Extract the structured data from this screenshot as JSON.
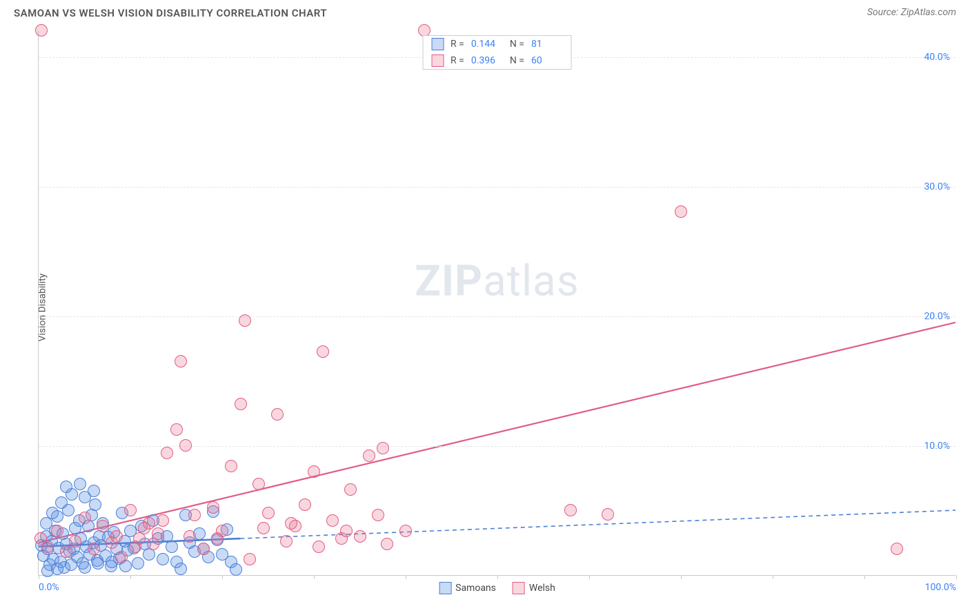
{
  "header": {
    "title": "SAMOAN VS WELSH VISION DISABILITY CORRELATION CHART",
    "source": "Source: ZipAtlas.com"
  },
  "watermark": {
    "bold": "ZIP",
    "light": "atlas"
  },
  "chart": {
    "type": "scatter",
    "y_label": "Vision Disability",
    "xlim": [
      0,
      100
    ],
    "ylim": [
      0,
      42
    ],
    "x_ticks": [
      0,
      10,
      20,
      30,
      40,
      50,
      60,
      70,
      80,
      90,
      100
    ],
    "x_tick_labels": {
      "0": "0.0%",
      "100": "100.0%"
    },
    "y_ticks": [
      10,
      20,
      30,
      40
    ],
    "y_tick_labels": [
      "10.0%",
      "20.0%",
      "30.0%",
      "40.0%"
    ],
    "grid_color": "#e5e5e5",
    "axis_color": "#c8c8c8",
    "background": "#ffffff",
    "label_color": "#555555",
    "tick_label_color": "#3b82f6",
    "marker_radius": 9,
    "series": [
      {
        "key": "samoans",
        "name": "Samoans",
        "R": "0.144",
        "N": "81",
        "fill": "rgba(96,150,230,0.35)",
        "stroke": "#4a7fd6",
        "trendline": {
          "x1": 0,
          "y1": 2.2,
          "x2": 100,
          "y2": 5.0,
          "dash": "6 5",
          "width": 1.6,
          "solid_until_x": 22
        },
        "points": [
          [
            0.3,
            2.3
          ],
          [
            0.5,
            1.5
          ],
          [
            0.8,
            3.0
          ],
          [
            1.0,
            2.0
          ],
          [
            1.2,
            0.8
          ],
          [
            1.4,
            2.6
          ],
          [
            1.6,
            1.2
          ],
          [
            1.8,
            3.4
          ],
          [
            2.0,
            4.5
          ],
          [
            2.2,
            2.1
          ],
          [
            2.4,
            1.0
          ],
          [
            2.6,
            3.2
          ],
          [
            2.8,
            0.6
          ],
          [
            3.0,
            2.4
          ],
          [
            3.2,
            5.0
          ],
          [
            3.4,
            1.8
          ],
          [
            3.6,
            6.2
          ],
          [
            3.8,
            2.0
          ],
          [
            4.0,
            3.6
          ],
          [
            4.2,
            1.4
          ],
          [
            4.4,
            4.2
          ],
          [
            4.6,
            2.8
          ],
          [
            4.8,
            0.9
          ],
          [
            5.0,
            6.0
          ],
          [
            5.2,
            2.2
          ],
          [
            5.4,
            3.8
          ],
          [
            5.6,
            1.6
          ],
          [
            5.8,
            4.6
          ],
          [
            6.0,
            2.5
          ],
          [
            6.2,
            5.4
          ],
          [
            6.4,
            1.1
          ],
          [
            6.6,
            3.0
          ],
          [
            6.8,
            2.3
          ],
          [
            7.0,
            4.0
          ],
          [
            7.3,
            1.5
          ],
          [
            7.6,
            2.9
          ],
          [
            7.9,
            0.7
          ],
          [
            8.2,
            3.3
          ],
          [
            8.5,
            2.0
          ],
          [
            8.8,
            1.3
          ],
          [
            9.1,
            4.8
          ],
          [
            9.4,
            2.6
          ],
          [
            9.7,
            1.9
          ],
          [
            10.0,
            3.4
          ],
          [
            10.4,
            2.1
          ],
          [
            10.8,
            0.9
          ],
          [
            11.2,
            3.8
          ],
          [
            11.6,
            2.4
          ],
          [
            12.0,
            1.6
          ],
          [
            12.5,
            4.2
          ],
          [
            13.0,
            2.8
          ],
          [
            13.5,
            1.2
          ],
          [
            14.0,
            3.0
          ],
          [
            14.5,
            2.2
          ],
          [
            15.0,
            1.0
          ],
          [
            15.5,
            0.5
          ],
          [
            16.0,
            4.6
          ],
          [
            16.5,
            2.5
          ],
          [
            17.0,
            1.8
          ],
          [
            17.5,
            3.2
          ],
          [
            18.0,
            2.0
          ],
          [
            18.5,
            1.4
          ],
          [
            19.0,
            4.9
          ],
          [
            19.5,
            2.7
          ],
          [
            20.0,
            1.6
          ],
          [
            20.5,
            3.5
          ],
          [
            21.0,
            1.0
          ],
          [
            21.5,
            0.4
          ],
          [
            3.0,
            6.8
          ],
          [
            4.5,
            7.0
          ],
          [
            6.0,
            6.5
          ],
          [
            2.5,
            5.6
          ],
          [
            1.5,
            4.8
          ],
          [
            0.8,
            4.0
          ],
          [
            1.0,
            0.3
          ],
          [
            2.0,
            0.5
          ],
          [
            3.5,
            0.8
          ],
          [
            5.0,
            0.6
          ],
          [
            6.5,
            0.9
          ],
          [
            8.0,
            1.0
          ],
          [
            9.5,
            0.7
          ]
        ]
      },
      {
        "key": "welsh",
        "name": "Welsh",
        "R": "0.396",
        "N": "60",
        "fill": "rgba(235,110,140,0.28)",
        "stroke": "#e25b85",
        "trendline": {
          "x1": 0,
          "y1": 2.5,
          "x2": 100,
          "y2": 19.5,
          "dash": "",
          "width": 2.2,
          "solid_until_x": 100
        },
        "points": [
          [
            0.2,
            2.8
          ],
          [
            1.0,
            2.2
          ],
          [
            2.0,
            3.4
          ],
          [
            3.0,
            1.8
          ],
          [
            4.0,
            2.6
          ],
          [
            5.0,
            4.4
          ],
          [
            6.0,
            2.0
          ],
          [
            7.0,
            3.8
          ],
          [
            8.0,
            2.5
          ],
          [
            9.0,
            1.4
          ],
          [
            10.0,
            5.0
          ],
          [
            11.0,
            2.8
          ],
          [
            12.0,
            4.0
          ],
          [
            13.0,
            3.2
          ],
          [
            14.0,
            9.4
          ],
          [
            15.0,
            11.2
          ],
          [
            15.5,
            16.5
          ],
          [
            16.0,
            10.0
          ],
          [
            17.0,
            4.6
          ],
          [
            18.0,
            2.0
          ],
          [
            19.0,
            5.2
          ],
          [
            20.0,
            3.4
          ],
          [
            21.0,
            8.4
          ],
          [
            22.0,
            13.2
          ],
          [
            22.5,
            19.6
          ],
          [
            23.0,
            1.2
          ],
          [
            24.0,
            7.0
          ],
          [
            25.0,
            4.8
          ],
          [
            26.0,
            12.4
          ],
          [
            27.0,
            2.6
          ],
          [
            28.0,
            3.8
          ],
          [
            29.0,
            5.4
          ],
          [
            30.0,
            8.0
          ],
          [
            31.0,
            17.2
          ],
          [
            32.0,
            4.2
          ],
          [
            33.0,
            2.8
          ],
          [
            34.0,
            6.6
          ],
          [
            35.0,
            3.0
          ],
          [
            36.0,
            9.2
          ],
          [
            37.0,
            4.6
          ],
          [
            37.5,
            9.8
          ],
          [
            38.0,
            2.4
          ],
          [
            40.0,
            3.4
          ],
          [
            42.0,
            42.0
          ],
          [
            58.0,
            5.0
          ],
          [
            62.0,
            4.7
          ],
          [
            70.0,
            28.0
          ],
          [
            93.5,
            2.0
          ],
          [
            0.3,
            42.0
          ],
          [
            8.5,
            3.0
          ],
          [
            10.5,
            2.2
          ],
          [
            11.5,
            3.6
          ],
          [
            12.5,
            2.4
          ],
          [
            13.5,
            4.2
          ],
          [
            16.5,
            3.0
          ],
          [
            19.5,
            2.8
          ],
          [
            24.5,
            3.6
          ],
          [
            27.5,
            4.0
          ],
          [
            30.5,
            2.2
          ],
          [
            33.5,
            3.4
          ]
        ]
      }
    ]
  },
  "legend_bottom": [
    {
      "name": "Samoans",
      "fill": "rgba(96,150,230,0.35)",
      "stroke": "#4a7fd6"
    },
    {
      "name": "Welsh",
      "fill": "rgba(235,110,140,0.28)",
      "stroke": "#e25b85"
    }
  ]
}
